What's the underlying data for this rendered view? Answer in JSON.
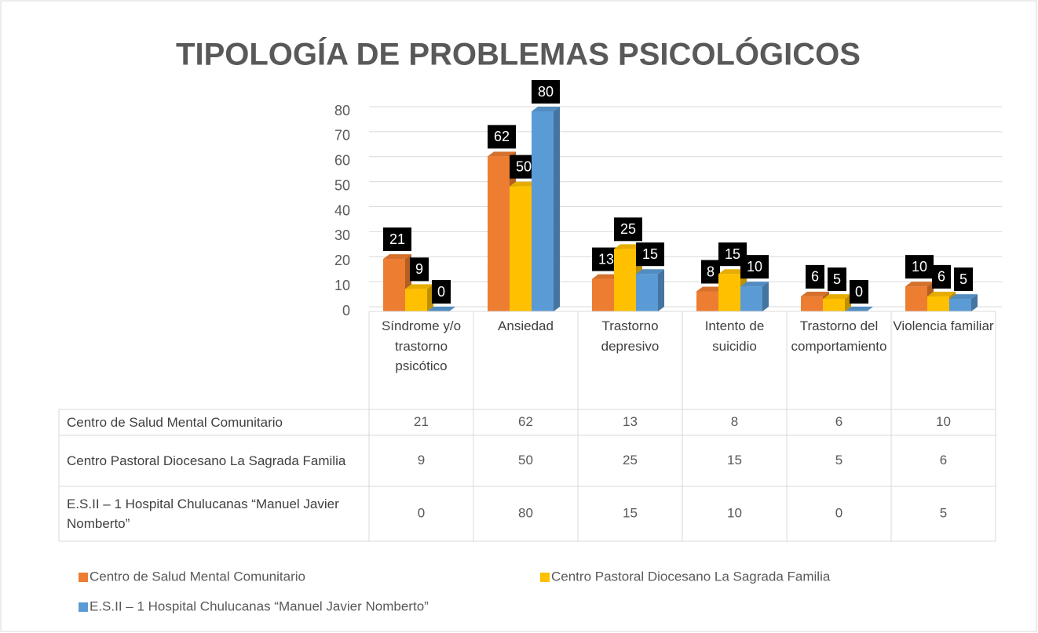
{
  "chart_data": {
    "type": "bar3d",
    "title": "TIPOLOGÍA DE PROBLEMAS PSICOLÓGICOS",
    "categories": [
      "Síndrome y/o trastorno psicótico",
      "Ansiedad",
      "Trastorno depresivo",
      "Intento de suicidio",
      "Trastorno del comportamiento",
      "Violencia familiar"
    ],
    "series": [
      {
        "name": "Centro de Salud Mental Comunitario",
        "color": "#ED7D31",
        "values": [
          21,
          62,
          13,
          8,
          6,
          10
        ]
      },
      {
        "name": "Centro Pastoral Diocesano La Sagrada Familia",
        "color": "#FFC000",
        "values": [
          9,
          50,
          25,
          15,
          5,
          6
        ]
      },
      {
        "name": "E.S.II – 1 Hospital Chulucanas “Manuel Javier Nomberto”",
        "color": "#5B9BD5",
        "values": [
          0,
          80,
          15,
          10,
          0,
          5
        ]
      }
    ],
    "ylim": [
      0,
      80
    ],
    "yticks": [
      0,
      10,
      20,
      30,
      40,
      50,
      60,
      70,
      80
    ],
    "grid": true,
    "legend": "bottom",
    "data_table": true
  }
}
